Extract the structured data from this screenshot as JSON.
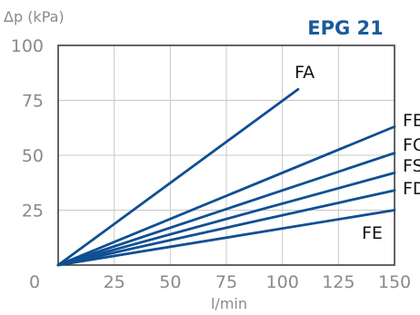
{
  "chart_data": {
    "type": "line",
    "title": "EPG 21",
    "xlabel": "l/min",
    "ylabel": "Δp (kPa)",
    "xlim": [
      0,
      150
    ],
    "ylim": [
      0,
      100
    ],
    "xticks": [
      0,
      25,
      50,
      75,
      100,
      125,
      150
    ],
    "yticks": [
      0,
      25,
      50,
      75,
      100
    ],
    "grid": true,
    "line_color": "#0f4f93",
    "series": [
      {
        "name": "FA",
        "x": [
          0,
          107
        ],
        "y": [
          0,
          80
        ]
      },
      {
        "name": "FB",
        "x": [
          0,
          150
        ],
        "y": [
          0,
          63
        ]
      },
      {
        "name": "FC",
        "x": [
          0,
          150
        ],
        "y": [
          0,
          51
        ]
      },
      {
        "name": "FS",
        "x": [
          0,
          150
        ],
        "y": [
          0,
          42
        ]
      },
      {
        "name": "FD",
        "x": [
          0,
          150
        ],
        "y": [
          0,
          34
        ]
      },
      {
        "name": "FE",
        "x": [
          0,
          150
        ],
        "y": [
          0,
          25
        ]
      }
    ]
  }
}
